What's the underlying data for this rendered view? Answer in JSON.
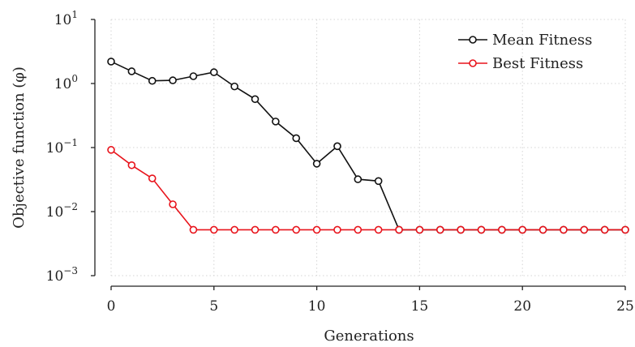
{
  "chart_data": {
    "type": "line",
    "xlabel": "Generations",
    "ylabel": "Objective function (φ)",
    "xlim": [
      0,
      25
    ],
    "ylim": [
      0.001,
      10
    ],
    "yscale": "log",
    "grid": true,
    "legend_position": "top-right",
    "x_ticks": [
      "0",
      "5",
      "10",
      "15",
      "20",
      "25"
    ],
    "y_ticks": [
      {
        "base": "10",
        "exp": "1",
        "value": 10
      },
      {
        "base": "10",
        "exp": "0",
        "value": 1
      },
      {
        "base": "10",
        "exp": "−1",
        "value": 0.1
      },
      {
        "base": "10",
        "exp": "−2",
        "value": 0.01
      },
      {
        "base": "10",
        "exp": "−3",
        "value": 0.001
      }
    ],
    "x": [
      0,
      1,
      2,
      3,
      4,
      5,
      6,
      7,
      8,
      9,
      10,
      11,
      12,
      13,
      14,
      15,
      16,
      17,
      18,
      19,
      20,
      21,
      22,
      23,
      24,
      25
    ],
    "series": [
      {
        "name": "Mean Fitness",
        "color": "#111111",
        "values": [
          2.2,
          1.55,
          1.1,
          1.12,
          1.3,
          1.5,
          0.9,
          0.57,
          0.255,
          0.14,
          0.056,
          0.105,
          0.032,
          0.03,
          0.0052,
          0.0052,
          0.0052,
          0.0052,
          0.0052,
          0.0052,
          0.0052,
          0.0052,
          0.0052,
          0.0052,
          0.0052,
          0.0052
        ]
      },
      {
        "name": "Best Fitness",
        "color": "#e8131b",
        "values": [
          0.092,
          0.053,
          0.033,
          0.013,
          0.0052,
          0.0052,
          0.0052,
          0.0052,
          0.0052,
          0.0052,
          0.0052,
          0.0052,
          0.0052,
          0.0052,
          0.0052,
          0.0052,
          0.0052,
          0.0052,
          0.0052,
          0.0052,
          0.0052,
          0.0052,
          0.0052,
          0.0052,
          0.0052,
          0.0052
        ]
      }
    ]
  }
}
